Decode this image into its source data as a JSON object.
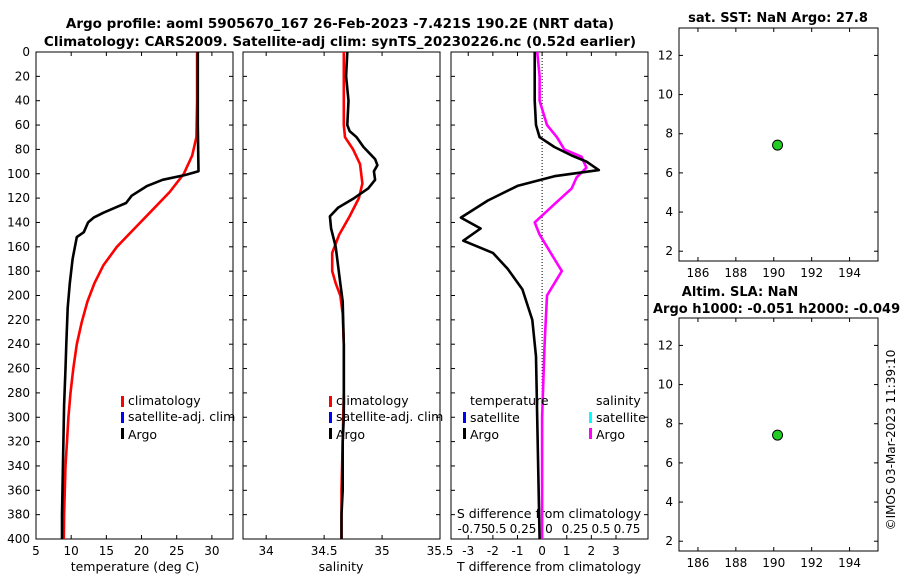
{
  "title": {
    "line1": "Argo profile: aoml 5905670_167 26-Feb-2023 -7.421S 190.2E (NRT data)",
    "line2": "Climatology: CARS2009. Satellite-adj clim: synTS_20230226.nc (0.52d earlier)"
  },
  "side_label": "©IMOS 03-Mar-2023 11:39:10",
  "colors": {
    "red": "#ff0000",
    "black": "#000000",
    "blue": "#0000ff",
    "magenta": "#ff00ff",
    "cyan": "#00ffff",
    "green": "#22cc22"
  },
  "chart_data": [
    {
      "id": "temp",
      "type": "line",
      "xlabel": "temperature (deg C)",
      "ylabel": "",
      "xlim": [
        5,
        33
      ],
      "ylim": [
        400,
        0
      ],
      "xticks": [
        "5",
        "10",
        "15",
        "20",
        "25",
        "30"
      ],
      "xtick_values": [
        5,
        10,
        15,
        20,
        25,
        30
      ],
      "yticks": [
        "0",
        "20",
        "40",
        "60",
        "80",
        "100",
        "120",
        "140",
        "160",
        "180",
        "200",
        "220",
        "240",
        "260",
        "280",
        "300",
        "320",
        "340",
        "360",
        "380",
        "400"
      ],
      "ytick_values": [
        0,
        20,
        40,
        60,
        80,
        100,
        120,
        140,
        160,
        180,
        200,
        220,
        240,
        260,
        280,
        300,
        320,
        340,
        360,
        380,
        400
      ],
      "legend": {
        "position": "lower-right",
        "entries": [
          "climatology",
          "satellite-adj. clim",
          "Argo"
        ],
        "colors": [
          "#ff0000",
          "#0000ff",
          "#000000"
        ]
      },
      "series": [
        {
          "name": "climatology",
          "color": "#ff0000",
          "points": [
            [
              27.9,
              0
            ],
            [
              27.9,
              40
            ],
            [
              27.8,
              70
            ],
            [
              27.2,
              85
            ],
            [
              26,
              100
            ],
            [
              24,
              115
            ],
            [
              21.5,
              130
            ],
            [
              19,
              145
            ],
            [
              16.5,
              160
            ],
            [
              14.6,
              175
            ],
            [
              13.3,
              190
            ],
            [
              12.3,
              205
            ],
            [
              11.5,
              222
            ],
            [
              10.8,
              240
            ],
            [
              10.3,
              260
            ],
            [
              9.9,
              280
            ],
            [
              9.6,
              300
            ],
            [
              9.4,
              320
            ],
            [
              9.2,
              340
            ],
            [
              9.1,
              360
            ],
            [
              9.0,
              380
            ],
            [
              8.95,
              400
            ]
          ]
        },
        {
          "name": "Argo",
          "color": "#000000",
          "points": [
            [
              28,
              0
            ],
            [
              28,
              60
            ],
            [
              28.1,
              98
            ],
            [
              26.2,
              101
            ],
            [
              23,
              105
            ],
            [
              20.8,
              110
            ],
            [
              18.6,
              118
            ],
            [
              17.8,
              124
            ],
            [
              16.2,
              128
            ],
            [
              14.6,
              132
            ],
            [
              13.2,
              136
            ],
            [
              12.4,
              140
            ],
            [
              11.8,
              148
            ],
            [
              10.8,
              152
            ],
            [
              10.6,
              158
            ],
            [
              10.2,
              170
            ],
            [
              9.8,
              190
            ],
            [
              9.5,
              210
            ],
            [
              9.3,
              240
            ],
            [
              9.2,
              260
            ],
            [
              9.0,
              290
            ],
            [
              8.9,
              320
            ],
            [
              8.8,
              350
            ],
            [
              8.7,
              380
            ],
            [
              8.7,
              400
            ]
          ]
        }
      ]
    },
    {
      "id": "sal",
      "type": "line",
      "xlabel": "salinity",
      "xlim": [
        33.8,
        35.5
      ],
      "ylim": [
        400,
        0
      ],
      "xticks": [
        "34",
        "34.5",
        "35",
        "35.5"
      ],
      "xtick_values": [
        34,
        34.5,
        35,
        35.5
      ],
      "legend": {
        "position": "lower-right",
        "entries": [
          "climatology",
          "satellite-adj. clim",
          "Argo"
        ],
        "colors": [
          "#ff0000",
          "#0000ff",
          "#000000"
        ]
      },
      "series": [
        {
          "name": "climatology",
          "color": "#ff0000",
          "points": [
            [
              34.67,
              0
            ],
            [
              34.67,
              30
            ],
            [
              34.67,
              60
            ],
            [
              34.68,
              70
            ],
            [
              34.75,
              80
            ],
            [
              34.81,
              92
            ],
            [
              34.83,
              108
            ],
            [
              34.8,
              120
            ],
            [
              34.72,
              135
            ],
            [
              34.63,
              150
            ],
            [
              34.57,
              165
            ],
            [
              34.57,
              180
            ],
            [
              34.6,
              190
            ],
            [
              34.64,
              200
            ],
            [
              34.66,
              215
            ],
            [
              34.67,
              240
            ],
            [
              34.67,
              280
            ],
            [
              34.66,
              320
            ],
            [
              34.65,
              360
            ],
            [
              34.65,
              400
            ]
          ]
        },
        {
          "name": "Argo",
          "color": "#000000",
          "points": [
            [
              34.7,
              0
            ],
            [
              34.69,
              20
            ],
            [
              34.71,
              40
            ],
            [
              34.7,
              60
            ],
            [
              34.72,
              65
            ],
            [
              34.78,
              70
            ],
            [
              34.84,
              78
            ],
            [
              34.9,
              84
            ],
            [
              34.94,
              88
            ],
            [
              34.96,
              93
            ],
            [
              34.93,
              98
            ],
            [
              34.94,
              105
            ],
            [
              34.88,
              112
            ],
            [
              34.76,
              120
            ],
            [
              34.62,
              128
            ],
            [
              34.55,
              135
            ],
            [
              34.56,
              145
            ],
            [
              34.6,
              160
            ],
            [
              34.62,
              175
            ],
            [
              34.64,
              190
            ],
            [
              34.66,
              205
            ],
            [
              34.67,
              240
            ],
            [
              34.67,
              280
            ],
            [
              34.67,
              300
            ],
            [
              34.66,
              320
            ],
            [
              34.66,
              340
            ],
            [
              34.66,
              360
            ],
            [
              34.65,
              380
            ],
            [
              34.65,
              400
            ]
          ]
        }
      ]
    },
    {
      "id": "diff",
      "type": "line",
      "xlabel": "T difference from climatology",
      "xlim": [
        -3.7,
        4.3
      ],
      "ylim": [
        400,
        0
      ],
      "xticks": [
        "-3",
        "-2",
        "-1",
        "0",
        "1",
        "2",
        "3"
      ],
      "xtick_values": [
        -3,
        -2,
        -1,
        0,
        1,
        2,
        3
      ],
      "top_xlabel": "S difference from climatology",
      "top_xticks": [
        "-0.75",
        "0.5",
        "0.25",
        "0",
        "0.25",
        "0.5",
        "0.75"
      ],
      "legend_temperature": {
        "title": "temperature",
        "entries": [
          "satellite",
          "Argo"
        ],
        "colors": [
          "#0000ff",
          "#000000"
        ]
      },
      "legend_salinity": {
        "title": "salinity",
        "entries": [
          "satellite",
          "Argo"
        ],
        "colors": [
          "#00ffff",
          "#ff00ff"
        ]
      },
      "series": [
        {
          "name": "salinity Argo",
          "color": "#ff00ff",
          "points": [
            [
              -0.2,
              0
            ],
            [
              -0.1,
              20
            ],
            [
              -0.1,
              40
            ],
            [
              0.2,
              60
            ],
            [
              0.6,
              70
            ],
            [
              0.9,
              80
            ],
            [
              1.6,
              86
            ],
            [
              1.8,
              95
            ],
            [
              1.4,
              103
            ],
            [
              1.2,
              112
            ],
            [
              0.5,
              125
            ],
            [
              -0.3,
              140
            ],
            [
              -0.1,
              150
            ],
            [
              0.5,
              170
            ],
            [
              0.8,
              180
            ],
            [
              0.5,
              190
            ],
            [
              0.2,
              200
            ],
            [
              0.1,
              240
            ],
            [
              0,
              300
            ],
            [
              0,
              360
            ],
            [
              0,
              400
            ]
          ]
        },
        {
          "name": "temperature Argo",
          "color": "#000000",
          "points": [
            [
              -0.3,
              0
            ],
            [
              -0.3,
              40
            ],
            [
              -0.25,
              60
            ],
            [
              -0.1,
              70
            ],
            [
              0.5,
              78
            ],
            [
              1.2,
              85
            ],
            [
              1.8,
              90
            ],
            [
              2.3,
              97
            ],
            [
              0.5,
              102
            ],
            [
              -1.0,
              110
            ],
            [
              -2.2,
              122
            ],
            [
              -3.3,
              136
            ],
            [
              -2.5,
              145
            ],
            [
              -3.2,
              155
            ],
            [
              -2.0,
              165
            ],
            [
              -1.4,
              178
            ],
            [
              -0.8,
              195
            ],
            [
              -0.4,
              220
            ],
            [
              -0.25,
              250
            ],
            [
              -0.2,
              300
            ],
            [
              -0.15,
              350
            ],
            [
              -0.1,
              400
            ]
          ]
        }
      ]
    },
    {
      "id": "sst",
      "type": "scatter",
      "title": "sat. SST: NaN Argo: 27.8",
      "xlim": [
        185,
        195.5
      ],
      "ylim": [
        1.5,
        13.4
      ],
      "xticks": [
        "186",
        "188",
        "190",
        "192",
        "194"
      ],
      "xtick_values": [
        186,
        188,
        190,
        192,
        194
      ],
      "yticks": [
        "2",
        "4",
        "6",
        "8",
        "10",
        "12"
      ],
      "ytick_values": [
        2,
        4,
        6,
        8,
        10,
        12
      ],
      "points": [
        [
          190.2,
          7.42
        ]
      ]
    },
    {
      "id": "sla",
      "type": "scatter",
      "title": "Altim. SLA: NaN",
      "title2": "Argo h1000: -0.051 h2000: -0.049",
      "xlim": [
        185,
        195.5
      ],
      "ylim": [
        1.5,
        13.4
      ],
      "xticks": [
        "186",
        "188",
        "190",
        "192",
        "194"
      ],
      "xtick_values": [
        186,
        188,
        190,
        192,
        194
      ],
      "yticks": [
        "2",
        "4",
        "6",
        "8",
        "10",
        "12"
      ],
      "ytick_values": [
        2,
        4,
        6,
        8,
        10,
        12
      ],
      "points": [
        [
          190.2,
          7.42
        ]
      ]
    }
  ]
}
